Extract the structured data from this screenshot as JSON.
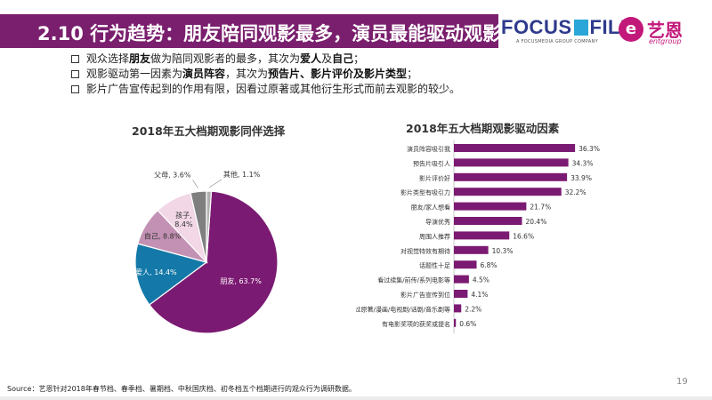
{
  "header": {
    "title": "2.10 行为趋势：朋友陪同观影最多，演员最能驱动观影",
    "logo_focus_a": "FOCUS",
    "logo_focus_b": "FILM",
    "logo_focus_sub": "A FOCUSMEDIA GROUP COMPANY",
    "logo_yien": "艺恩",
    "logo_yien_mark": "e",
    "logo_yien_sub": "entgroup"
  },
  "bullets": [
    {
      "t1": "观众选择",
      "b1": "朋友",
      "t2": "做为陪同观影者的最多，其次为",
      "b2": "爱人",
      "t3": "及",
      "b3": "自己",
      "t4": "；"
    },
    {
      "t1": "观影驱动第一因素为",
      "b1": "演员阵容",
      "t2": "，其次为",
      "b2": "预告片、影片评价及影片类型",
      "t3": "；",
      "b3": "",
      "t4": ""
    },
    {
      "t1": "影片广告宣传起到的作用有限，因看过原著或其他衍生形式而前去观影的较少。",
      "b1": "",
      "t2": "",
      "b2": "",
      "t3": "",
      "b3": "",
      "t4": ""
    }
  ],
  "colors": {
    "title_bg": "#7a1f6e",
    "bar": "#7b1a72",
    "pie": [
      "#7b1a72",
      "#1479a8",
      "#c291b3",
      "#f2d7e6",
      "#7f7f7f",
      "#b1b1b1"
    ]
  },
  "chart_data": [
    {
      "type": "pie",
      "title": "2018年五大档期观影同伴选择",
      "labels": [
        "朋友",
        "爱人",
        "自己",
        "孩子",
        "父母",
        "其他"
      ],
      "values": [
        63.7,
        14.4,
        8.8,
        8.4,
        3.6,
        1.1
      ],
      "value_labels": [
        "朋友, 63.7%",
        "爱人, 14.4%",
        "自己, 8.8%",
        "孩子,",
        "父母, 3.6%",
        "其他, 1.1%"
      ],
      "value_labels_2": [
        "",
        "",
        "",
        "8.4%",
        "",
        ""
      ]
    },
    {
      "type": "bar",
      "orientation": "horizontal",
      "title": "2018年五大档期观影驱动因素",
      "categories": [
        "演员阵容吸引我",
        "预告片吸引人",
        "影片评价好",
        "影片类型有吸引力",
        "朋友/家人想看",
        "导演优秀",
        "周围人推荐",
        "对视觉特效有期待",
        "话题性十足",
        "看过续集/前传/系列电影等",
        "影片广告宣传到位",
        "看过原著/漫画/电视剧/话剧/音乐剧等",
        "有电影奖项的获奖或提名"
      ],
      "values": [
        36.3,
        34.3,
        33.9,
        32.2,
        21.7,
        20.4,
        16.6,
        10.3,
        6.8,
        4.5,
        4.1,
        2.2,
        0.6
      ],
      "value_labels": [
        "36.3%",
        "34.3%",
        "33.9%",
        "32.2%",
        "21.7%",
        "20.4%",
        "16.6%",
        "10.3%",
        "6.8%",
        "4.5%",
        "4.1%",
        "2.2%",
        "0.6%"
      ],
      "xlim": [
        0,
        40
      ]
    }
  ],
  "footer": {
    "source": "Source：艺恩针对2018年春节档、春季档、暑期档、中秋国庆档、初冬档五个档期进行的观众行为调研数据。",
    "page_number": "19"
  }
}
